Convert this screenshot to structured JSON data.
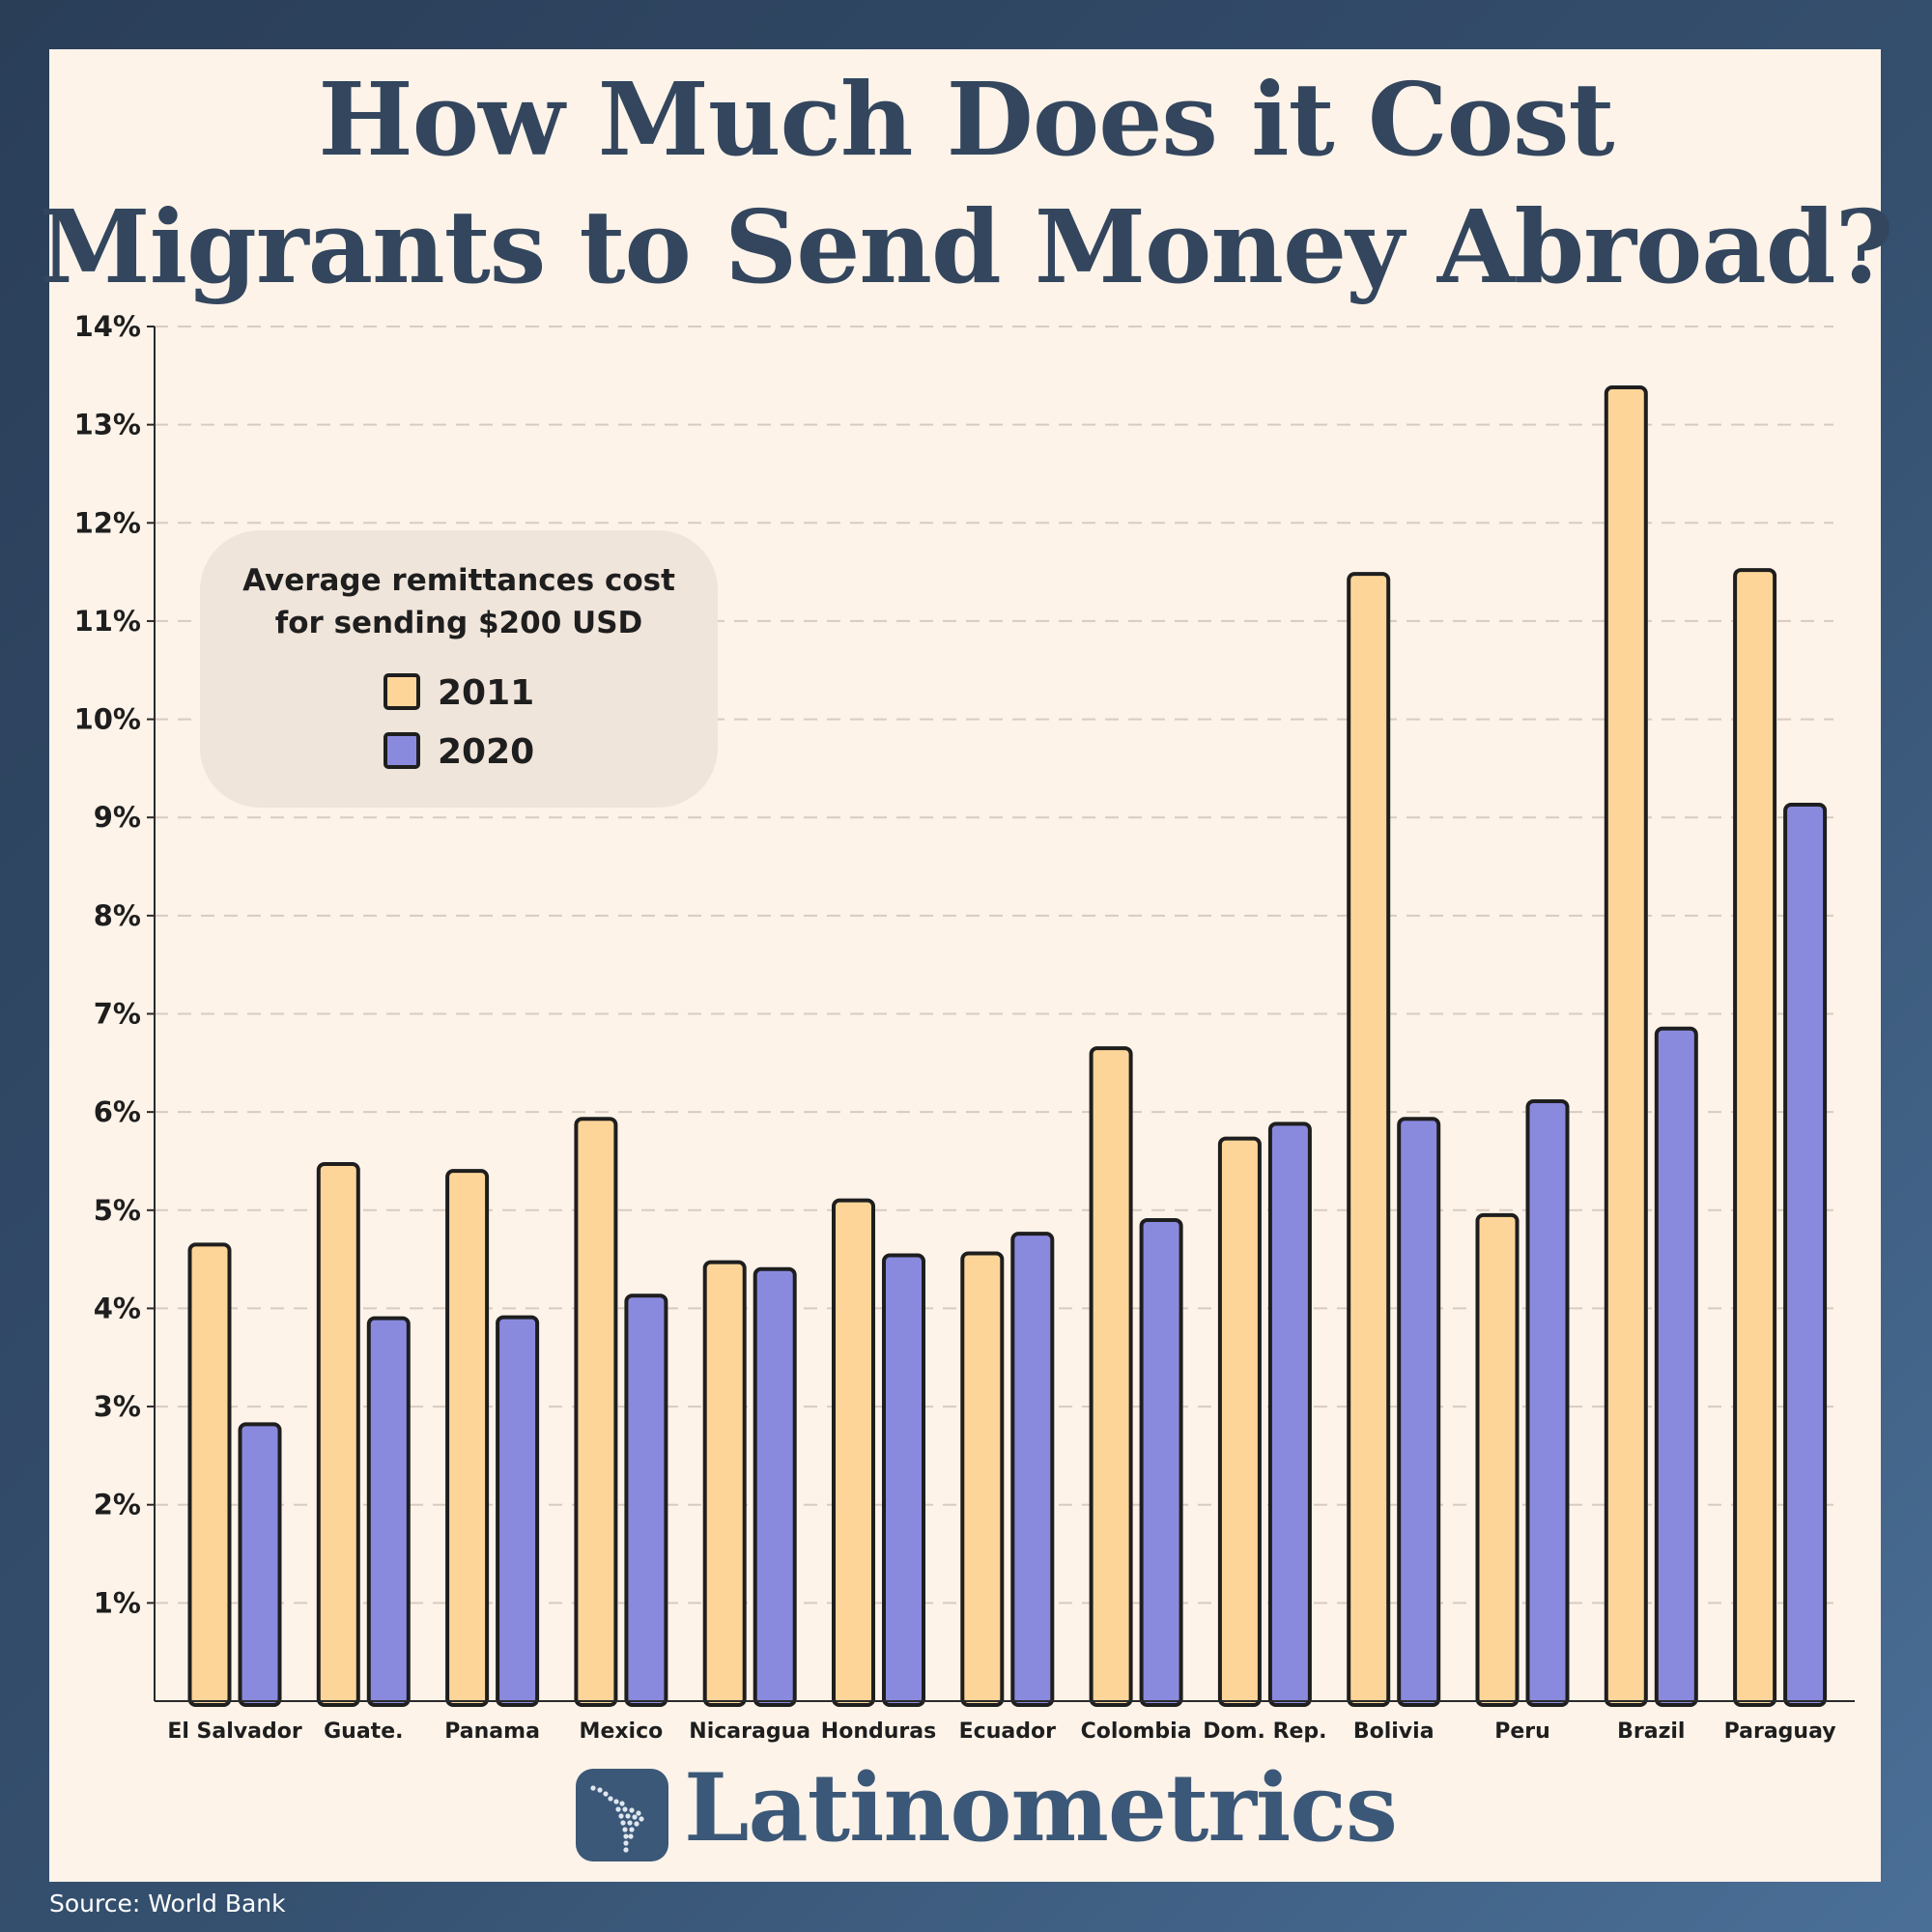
{
  "header": {
    "title_line1": "How Much Does it Cost",
    "title_line2": "Migrants to Send Money Abroad?"
  },
  "legend": {
    "title": "Average remittances cost\nfor sending $200 USD",
    "items": [
      {
        "label": "2011",
        "color": "#fed598"
      },
      {
        "label": "2020",
        "color": "#898ade"
      }
    ]
  },
  "chart_data": {
    "type": "bar",
    "categories": [
      "El Salvador",
      "Guate.",
      "Panama",
      "Mexico",
      "Nicaragua",
      "Honduras",
      "Ecuador",
      "Colombia",
      "Dom. Rep.",
      "Bolivia",
      "Peru",
      "Brazil",
      "Paraguay"
    ],
    "series": [
      {
        "name": "2011",
        "color": "#fed598",
        "values": [
          4.65,
          5.47,
          5.4,
          5.93,
          4.47,
          5.1,
          4.56,
          6.65,
          5.73,
          11.48,
          4.95,
          13.38,
          11.52
        ]
      },
      {
        "name": "2020",
        "color": "#898ade",
        "values": [
          2.82,
          3.9,
          3.91,
          4.13,
          4.4,
          4.54,
          4.76,
          4.9,
          5.88,
          5.93,
          6.11,
          6.85,
          9.13
        ]
      }
    ],
    "yticks": [
      {
        "v": 1,
        "label": "1%"
      },
      {
        "v": 2,
        "label": "2%"
      },
      {
        "v": 3,
        "label": "3%"
      },
      {
        "v": 4,
        "label": "4%"
      },
      {
        "v": 5,
        "label": "5%"
      },
      {
        "v": 6,
        "label": "6%"
      },
      {
        "v": 7,
        "label": "7%"
      },
      {
        "v": 8,
        "label": "8%"
      },
      {
        "v": 9,
        "label": "9%"
      },
      {
        "v": 10,
        "label": "10%"
      },
      {
        "v": 11,
        "label": "11%"
      },
      {
        "v": 12,
        "label": "12%"
      },
      {
        "v": 13,
        "label": "13%"
      },
      {
        "v": 14,
        "label": "14%"
      }
    ],
    "ylim": [
      0,
      14
    ],
    "grid": true,
    "legend_position": "upper-left"
  },
  "brand": {
    "name": "Latinometrics",
    "logo_icon": "latin-america-map-icon"
  },
  "source": "Source: World Bank"
}
